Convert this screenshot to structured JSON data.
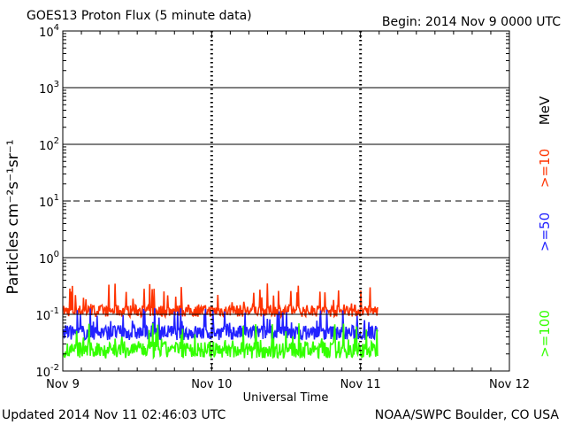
{
  "header": {
    "title": "GOES13 Proton Flux (5 minute data)",
    "begin": "Begin: 2014 Nov 9 0000 UTC"
  },
  "footer": {
    "updated": "Updated 2014 Nov 11 02:46:03 UTC",
    "credit": "NOAA/SWPC Boulder, CO USA"
  },
  "chart_data": {
    "type": "line",
    "title": "GOES13 Proton Flux (5 minute data)",
    "xlabel": "Universal Time",
    "ylabel": "Particles cm⁻²s⁻¹sr⁻¹",
    "yscale": "log",
    "ylim": [
      0.01,
      10000
    ],
    "xlim": [
      "2014-11-09 00:00",
      "2014-11-12 00:00"
    ],
    "x_ticks": [
      "Nov 9",
      "Nov 10",
      "Nov 11",
      "Nov 12"
    ],
    "y_ticks": [
      "10",
      "10",
      "10",
      "10",
      "10",
      "10",
      "10"
    ],
    "y_tick_exponents": [
      "-2",
      "-1",
      "0",
      "1",
      "2",
      "3",
      "4"
    ],
    "data_end": "2014-11-11 02:45",
    "day_separators": [
      "2014-11-10 00:00",
      "2014-11-11 00:00"
    ],
    "threshold_line": 10,
    "unit_label": "MeV",
    "series": [
      {
        "name": ">=10",
        "color": "#ff3300",
        "typical": 0.12,
        "range": [
          0.08,
          0.35
        ]
      },
      {
        "name": ">=50",
        "color": "#2222ff",
        "typical": 0.05,
        "range": [
          0.03,
          0.13
        ]
      },
      {
        "name": ">=100",
        "color": "#33ff00",
        "typical": 0.025,
        "range": [
          0.014,
          0.07
        ]
      }
    ],
    "grid": true,
    "legend": "right"
  }
}
